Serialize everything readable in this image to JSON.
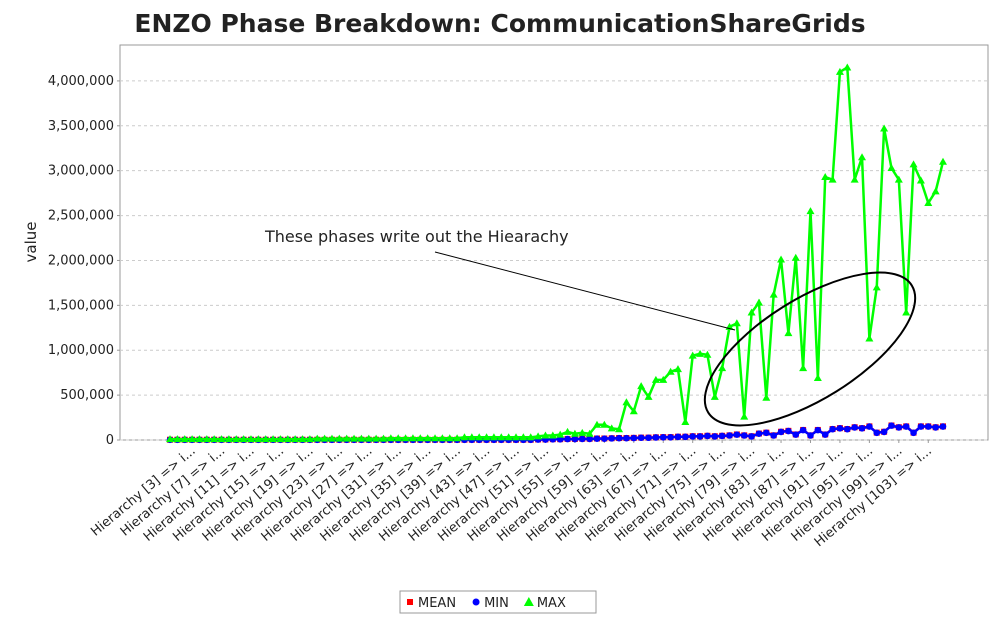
{
  "chart_data": {
    "type": "line",
    "title": "ENZO Phase Breakdown: CommunicationShareGrids",
    "y_label": "value",
    "annotation": "These phases write out the Hiearachy",
    "categories": [
      null,
      null,
      null,
      "Hierarchy [3]  => i...",
      null,
      null,
      null,
      "Hierarchy [7]  => i...",
      null,
      null,
      null,
      "Hierarchy [11]  => i...",
      null,
      null,
      null,
      "Hierarchy [15]  => i...",
      null,
      null,
      null,
      "Hierarchy [19]  => i...",
      null,
      null,
      null,
      "Hierarchy [23]  => i...",
      null,
      null,
      null,
      "Hierarchy [27]  => i...",
      null,
      null,
      null,
      "Hierarchy [31]  => i...",
      null,
      null,
      null,
      "Hierarchy [35]  => i...",
      null,
      null,
      null,
      "Hierarchy [39]  => i...",
      null,
      null,
      null,
      "Hierarchy [43]  => i...",
      null,
      null,
      null,
      "Hierarchy [47]  => i...",
      null,
      null,
      null,
      "Hierarchy [51]  => i...",
      null,
      null,
      null,
      "Hierarchy [55]  => i...",
      null,
      null,
      null,
      "Hierarchy [59]  => i...",
      null,
      null,
      null,
      "Hierarchy [63]  => i...",
      null,
      null,
      null,
      "Hierarchy [67]  => i...",
      null,
      null,
      null,
      "Hierarchy [71]  => i...",
      null,
      null,
      null,
      "Hierarchy [75]  => i...",
      null,
      null,
      null,
      "Hierarchy [79]  => i...",
      null,
      null,
      null,
      "Hierarchy [83]  => i...",
      null,
      null,
      null,
      "Hierarchy [87]  => i...",
      null,
      null,
      null,
      "Hierarchy [91]  => i...",
      null,
      null,
      null,
      "Hierarchy [95]  => i...",
      null,
      null,
      null,
      "Hierarchy [99]  => i...",
      null,
      null,
      null,
      "Hierarchy [103]  => i...",
      null,
      null
    ],
    "series": [
      {
        "name": "MEAN",
        "color": "#ff0000",
        "marker": "square",
        "values": [
          3000,
          3000,
          3000,
          3000,
          3000,
          3000,
          3000,
          3000,
          3000,
          3000,
          3000,
          3000,
          3000,
          3000,
          3000,
          3000,
          3000,
          3000,
          3000,
          3000,
          3000,
          3000,
          3000,
          3000,
          3000,
          3000,
          3000,
          3000,
          3000,
          3000,
          3000,
          3000,
          3000,
          3000,
          3000,
          3000,
          3000,
          3000,
          3000,
          3000,
          3000,
          3000,
          3000,
          3000,
          3000,
          3000,
          3000,
          3000,
          3000,
          3000,
          6000,
          6000,
          9000,
          9000,
          12000,
          12000,
          14000,
          14000,
          17000,
          17000,
          20000,
          22000,
          22000,
          24000,
          27000,
          27000,
          30000,
          32000,
          32000,
          37000,
          37000,
          42000,
          42000,
          47000,
          42000,
          47000,
          52000,
          62000,
          52000,
          42000,
          72000,
          82000,
          52000,
          92000,
          102000,
          62000,
          112000,
          52000,
          112000,
          62000,
          122000,
          132000,
          122000,
          142000,
          132000,
          152000,
          82000,
          92000,
          162000,
          142000,
          152000,
          82000,
          152000,
          152000,
          142000,
          152000
        ]
      },
      {
        "name": "MIN",
        "color": "#0000ff",
        "marker": "circle",
        "values": [
          2000,
          2000,
          2000,
          2000,
          2000,
          2000,
          2000,
          2000,
          2000,
          2000,
          2000,
          2000,
          2000,
          2000,
          2000,
          2000,
          2000,
          2000,
          2000,
          2000,
          2000,
          2000,
          2000,
          2000,
          2000,
          2000,
          2000,
          2000,
          2000,
          2000,
          2000,
          2000,
          2000,
          2000,
          2000,
          2000,
          2000,
          2000,
          2000,
          2000,
          2000,
          2000,
          2000,
          2000,
          2000,
          2000,
          2000,
          2000,
          2000,
          2000,
          5000,
          5000,
          8000,
          8000,
          10000,
          10000,
          12000,
          12000,
          15000,
          15000,
          18000,
          20000,
          20000,
          22000,
          25000,
          25000,
          28000,
          30000,
          30000,
          35000,
          35000,
          40000,
          40000,
          45000,
          40000,
          45000,
          50000,
          60000,
          50000,
          40000,
          70000,
          80000,
          50000,
          90000,
          100000,
          60000,
          110000,
          50000,
          110000,
          60000,
          120000,
          130000,
          120000,
          140000,
          130000,
          150000,
          80000,
          90000,
          160000,
          140000,
          150000,
          80000,
          150000,
          150000,
          140000,
          150000
        ]
      },
      {
        "name": "MAX",
        "color": "#00ff00",
        "marker": "triangle",
        "values": [
          10000,
          10000,
          10000,
          10000,
          10000,
          10000,
          10000,
          10000,
          10000,
          10000,
          10000,
          10000,
          10000,
          10000,
          10000,
          10000,
          10000,
          10000,
          10000,
          10000,
          15000,
          15000,
          15000,
          15000,
          15000,
          15000,
          15000,
          15000,
          15000,
          15000,
          20000,
          20000,
          20000,
          20000,
          20000,
          20000,
          20000,
          20000,
          20000,
          20000,
          30000,
          30000,
          30000,
          30000,
          30000,
          30000,
          30000,
          30000,
          30000,
          30000,
          40000,
          50000,
          50000,
          60000,
          90000,
          70000,
          80000,
          70000,
          170000,
          170000,
          130000,
          120000,
          420000,
          320000,
          600000,
          480000,
          670000,
          670000,
          760000,
          790000,
          200000,
          940000,
          960000,
          950000,
          480000,
          800000,
          1260000,
          1300000,
          260000,
          1420000,
          1530000,
          470000,
          1620000,
          2010000,
          1190000,
          2030000,
          800000,
          2550000,
          690000,
          2930000,
          2900000,
          4100000,
          4150000,
          2900000,
          3150000,
          1130000,
          1700000,
          3470000,
          3030000,
          2900000,
          1420000,
          3070000,
          2890000,
          2640000,
          2770000,
          3100000
        ]
      }
    ],
    "ylim": [
      0,
      4400000
    ],
    "yticks": [
      {
        "value": 0,
        "label": "0"
      },
      {
        "value": 500000,
        "label": "500,000"
      },
      {
        "value": 1000000,
        "label": "1,000,000"
      },
      {
        "value": 1500000,
        "label": "1,500,000"
      },
      {
        "value": 2000000,
        "label": "2,000,000"
      },
      {
        "value": 2500000,
        "label": "2,500,000"
      },
      {
        "value": 3000000,
        "label": "3,000,000"
      },
      {
        "value": 3500000,
        "label": "3,500,000"
      },
      {
        "value": 4000000,
        "label": "4,000,000"
      }
    ],
    "grid": true
  }
}
